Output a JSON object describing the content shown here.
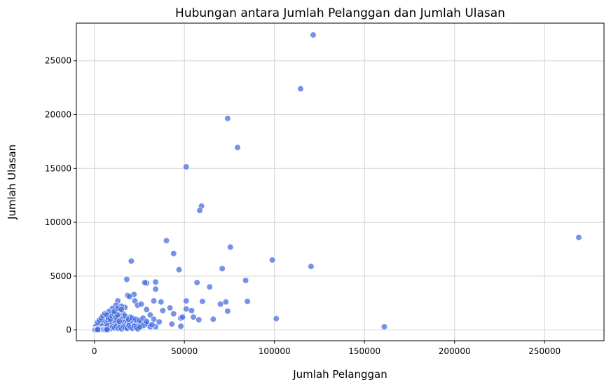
{
  "chart_data": {
    "type": "scatter",
    "title": "Hubungan antara Jumlah Pelanggan dan Jumlah Ulasan",
    "xlabel": "Jumlah Pelanggan",
    "ylabel": "Jumlah Ulasan",
    "xlim": [
      -10000,
      283000
    ],
    "ylim": [
      -1000,
      28500
    ],
    "xticks": [
      0,
      50000,
      100000,
      150000,
      200000,
      250000
    ],
    "yticks": [
      0,
      5000,
      10000,
      15000,
      20000,
      25000
    ],
    "grid": true,
    "point_color": "#4169e1",
    "points": [
      [
        121500,
        27400
      ],
      [
        114500,
        22400
      ],
      [
        74000,
        19650
      ],
      [
        79500,
        16950
      ],
      [
        51000,
        15150
      ],
      [
        59500,
        11500
      ],
      [
        58500,
        11100
      ],
      [
        269000,
        8600
      ],
      [
        40000,
        8300
      ],
      [
        75500,
        7700
      ],
      [
        44000,
        7100
      ],
      [
        98800,
        6500
      ],
      [
        20500,
        6400
      ],
      [
        120300,
        5900
      ],
      [
        71000,
        5700
      ],
      [
        47000,
        5600
      ],
      [
        18000,
        4700
      ],
      [
        84000,
        4600
      ],
      [
        57000,
        4400
      ],
      [
        29000,
        4350
      ],
      [
        28000,
        4400
      ],
      [
        34000,
        4450
      ],
      [
        64000,
        4000
      ],
      [
        34000,
        3800
      ],
      [
        22000,
        3300
      ],
      [
        18500,
        3200
      ],
      [
        19500,
        3100
      ],
      [
        51000,
        2700
      ],
      [
        60000,
        2650
      ],
      [
        73000,
        2600
      ],
      [
        85000,
        2650
      ],
      [
        70000,
        2400
      ],
      [
        22500,
        2700
      ],
      [
        13000,
        2700
      ],
      [
        33000,
        2700
      ],
      [
        37000,
        2600
      ],
      [
        42000,
        2050
      ],
      [
        51000,
        1950
      ],
      [
        54000,
        1800
      ],
      [
        74000,
        1750
      ],
      [
        38000,
        1800
      ],
      [
        29000,
        1900
      ],
      [
        24000,
        2300
      ],
      [
        26000,
        2400
      ],
      [
        17000,
        2100
      ],
      [
        15000,
        2200
      ],
      [
        12000,
        2300
      ],
      [
        10000,
        2000
      ],
      [
        44000,
        1500
      ],
      [
        55000,
        1200
      ],
      [
        58000,
        950
      ],
      [
        66000,
        1000
      ],
      [
        101000,
        1050
      ],
      [
        161000,
        300
      ],
      [
        48000,
        1100
      ],
      [
        49000,
        1200
      ],
      [
        36000,
        750
      ],
      [
        31000,
        1400
      ],
      [
        33000,
        1000
      ],
      [
        48000,
        350
      ],
      [
        43000,
        550
      ],
      [
        34000,
        300
      ],
      [
        30000,
        500
      ],
      [
        28000,
        450
      ],
      [
        25000,
        600
      ],
      [
        22000,
        800
      ],
      [
        20000,
        1200
      ],
      [
        18000,
        1000
      ],
      [
        16000,
        1500
      ],
      [
        14000,
        1800
      ],
      [
        12000,
        1600
      ],
      [
        9000,
        1400
      ],
      [
        8000,
        1700
      ],
      [
        7000,
        1200
      ],
      [
        6000,
        1000
      ],
      [
        5000,
        800
      ],
      [
        4000,
        600
      ],
      [
        3000,
        500
      ],
      [
        2000,
        300
      ],
      [
        1500,
        200
      ],
      [
        1000,
        100
      ],
      [
        500,
        50
      ],
      [
        200,
        20
      ],
      [
        800,
        150
      ],
      [
        2500,
        400
      ],
      [
        3500,
        700
      ],
      [
        4500,
        900
      ],
      [
        5500,
        1300
      ],
      [
        6500,
        600
      ],
      [
        7500,
        900
      ],
      [
        8500,
        500
      ],
      [
        9500,
        800
      ],
      [
        10500,
        1100
      ],
      [
        11500,
        700
      ],
      [
        12500,
        900
      ],
      [
        13500,
        1200
      ],
      [
        14500,
        600
      ],
      [
        15500,
        1000
      ],
      [
        16500,
        700
      ],
      [
        17500,
        500
      ],
      [
        18500,
        800
      ],
      [
        19500,
        600
      ],
      [
        20500,
        900
      ],
      [
        21500,
        400
      ],
      [
        23000,
        500
      ],
      [
        24000,
        300
      ],
      [
        26000,
        700
      ],
      [
        27000,
        400
      ],
      [
        29000,
        600
      ],
      [
        31000,
        300
      ],
      [
        32000,
        500
      ],
      [
        1200,
        450
      ],
      [
        2200,
        250
      ],
      [
        3200,
        150
      ],
      [
        4200,
        350
      ],
      [
        5200,
        100
      ],
      [
        6200,
        250
      ],
      [
        7200,
        400
      ],
      [
        8200,
        200
      ],
      [
        9200,
        150
      ],
      [
        10200,
        300
      ],
      [
        11200,
        200
      ],
      [
        12200,
        350
      ],
      [
        13200,
        150
      ],
      [
        14200,
        250
      ],
      [
        15200,
        100
      ],
      [
        16200,
        300
      ],
      [
        17200,
        200
      ],
      [
        18200,
        150
      ],
      [
        19200,
        400
      ],
      [
        20200,
        250
      ],
      [
        21200,
        150
      ],
      [
        22200,
        350
      ],
      [
        23200,
        200
      ],
      [
        24200,
        100
      ],
      [
        25200,
        250
      ],
      [
        600,
        300
      ],
      [
        1800,
        700
      ],
      [
        2800,
        900
      ],
      [
        3800,
        1100
      ],
      [
        4800,
        1300
      ],
      [
        5800,
        1500
      ],
      [
        6800,
        1400
      ],
      [
        7800,
        1100
      ],
      [
        8800,
        1000
      ],
      [
        9800,
        1300
      ],
      [
        10800,
        1500
      ],
      [
        11800,
        1200
      ],
      [
        12800,
        1400
      ],
      [
        13800,
        800
      ],
      [
        300,
        80
      ],
      [
        700,
        40
      ],
      [
        1100,
        10
      ],
      [
        1600,
        60
      ],
      [
        2100,
        120
      ],
      [
        2600,
        40
      ],
      [
        3100,
        20
      ],
      [
        3600,
        90
      ],
      [
        4100,
        50
      ],
      [
        4600,
        30
      ],
      [
        5100,
        70
      ],
      [
        5600,
        40
      ],
      [
        6100,
        20
      ],
      [
        6600,
        60
      ],
      [
        7100,
        30
      ],
      [
        100,
        5
      ],
      [
        400,
        10
      ],
      [
        900,
        25
      ],
      [
        1400,
        15
      ],
      [
        1900,
        35
      ],
      [
        11000,
        1700
      ],
      [
        13000,
        2000
      ],
      [
        15000,
        1900
      ],
      [
        17000,
        1300
      ],
      [
        19000,
        1000
      ],
      [
        21000,
        1100
      ],
      [
        23000,
        1000
      ],
      [
        25000,
        900
      ],
      [
        27000,
        1100
      ],
      [
        29000,
        800
      ]
    ]
  }
}
